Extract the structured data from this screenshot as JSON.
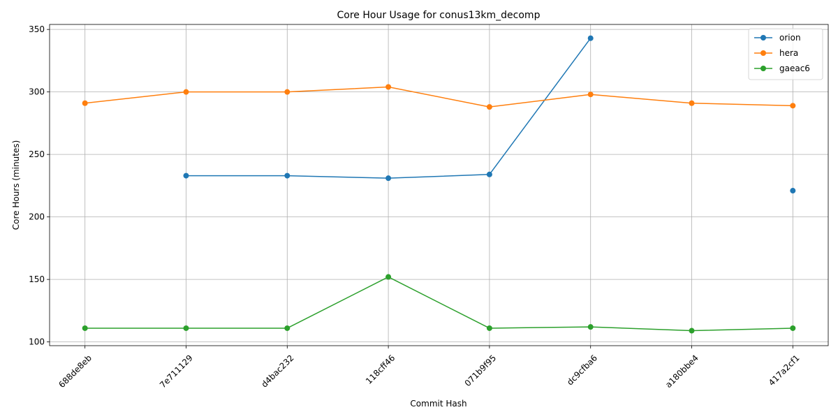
{
  "chart_data": {
    "type": "line",
    "title": "Core Hour Usage for conus13km_decomp",
    "xlabel": "Commit Hash",
    "ylabel": "Core Hours (minutes)",
    "categories": [
      "688de8eb",
      "7e711129",
      "d4bac232",
      "118cff46",
      "071b9f95",
      "dc9cfba6",
      "a180bbe4",
      "417a2cf1"
    ],
    "ylim": [
      97,
      354
    ],
    "yticks": [
      100,
      150,
      200,
      250,
      300,
      350
    ],
    "grid": true,
    "legend_position": "top-right",
    "series": [
      {
        "name": "orion",
        "color": "#1f77b4",
        "values": [
          null,
          233,
          233,
          231,
          234,
          343,
          null,
          221
        ]
      },
      {
        "name": "hera",
        "color": "#ff7f0e",
        "values": [
          291,
          300,
          300,
          304,
          288,
          298,
          291,
          289
        ]
      },
      {
        "name": "gaeac6",
        "color": "#2ca02c",
        "values": [
          111,
          111,
          111,
          152,
          111,
          112,
          109,
          111
        ]
      }
    ]
  }
}
